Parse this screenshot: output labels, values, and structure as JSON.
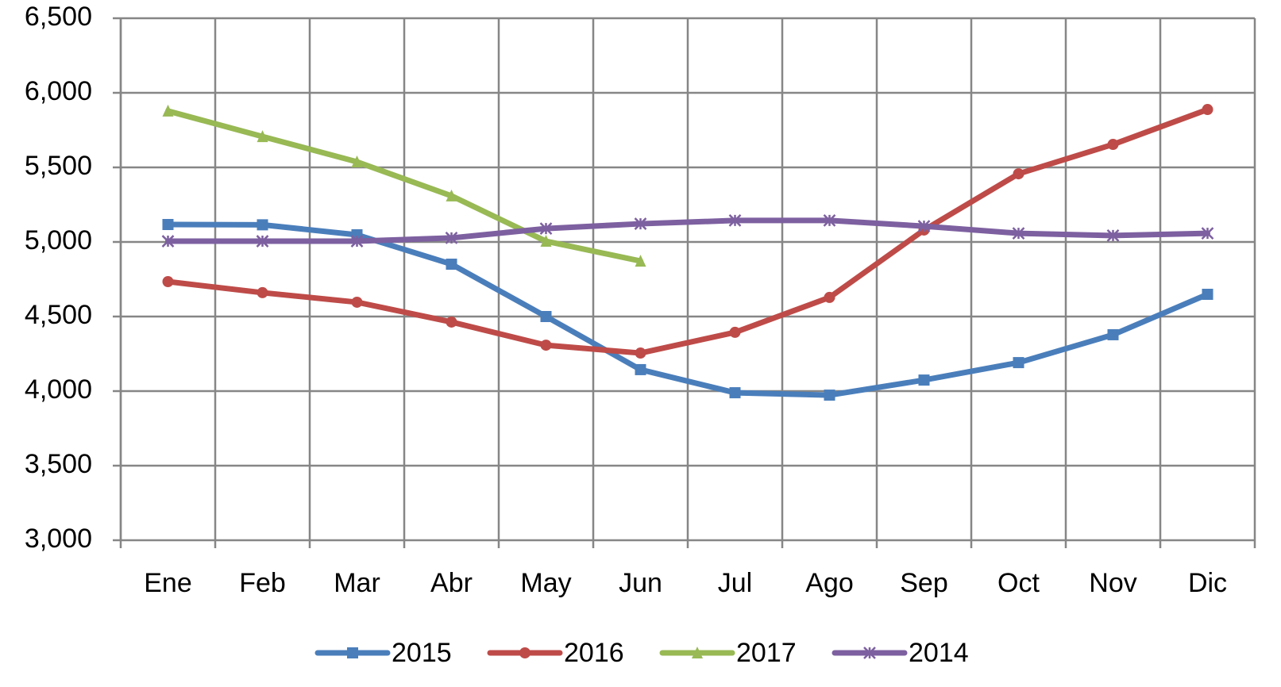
{
  "chart_data": {
    "type": "line",
    "categories": [
      "Ene",
      "Feb",
      "Mar",
      "Abr",
      "May",
      "Jun",
      "Jul",
      "Ago",
      "Sep",
      "Oct",
      "Nov",
      "Dic"
    ],
    "series": [
      {
        "name": "2015",
        "color": "#4a7ebb",
        "marker": "square",
        "values": [
          5117,
          5115,
          5048,
          4851,
          4500,
          4144,
          3989,
          3973,
          4074,
          4191,
          4378,
          4649
        ]
      },
      {
        "name": "2016",
        "color": "#be4b48",
        "marker": "circle",
        "values": [
          4734,
          4660,
          4596,
          4463,
          4308,
          4255,
          4394,
          4628,
          5080,
          5457,
          5654,
          5888
        ]
      },
      {
        "name": "2017",
        "color": "#98b954",
        "marker": "triangle",
        "values": [
          5878,
          5707,
          5537,
          5309,
          5005,
          4872,
          null,
          null,
          null,
          null,
          null,
          null
        ]
      },
      {
        "name": "2014",
        "color": "#7d60a0",
        "marker": "star",
        "values": [
          5005,
          5005,
          5005,
          5027,
          5090,
          5122,
          5144,
          5144,
          5106,
          5058,
          5043,
          5058
        ]
      }
    ],
    "ylim": [
      3000,
      6500
    ],
    "yticks": [
      {
        "value": 3000,
        "label": "3,000"
      },
      {
        "value": 3500,
        "label": "3,500"
      },
      {
        "value": 4000,
        "label": "4,000"
      },
      {
        "value": 4500,
        "label": "4,500"
      },
      {
        "value": 5000,
        "label": "5,000"
      },
      {
        "value": 5500,
        "label": "5,500"
      },
      {
        "value": 6000,
        "label": "6,000"
      },
      {
        "value": 6500,
        "label": "6,500"
      }
    ],
    "grid": true,
    "legend": "bottom"
  }
}
